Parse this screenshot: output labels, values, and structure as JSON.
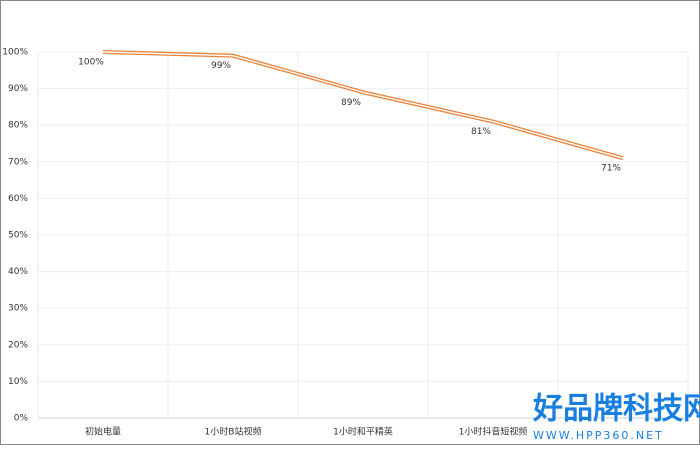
{
  "chart_data": {
    "type": "line",
    "categories": [
      "初始电量",
      "1小时B站视频",
      "1小时和平精英",
      "1小时抖音短视频",
      null
    ],
    "series": [
      {
        "name": null,
        "color": "#e8833a",
        "values": [
          100,
          99,
          89,
          81,
          71
        ],
        "value_labels": [
          "100%",
          "99%",
          "89%",
          "81%",
          "71%"
        ]
      }
    ],
    "ylim": [
      0,
      100
    ],
    "yticks": [
      {
        "value": 0,
        "label": "0%"
      },
      {
        "value": 10,
        "label": "10%"
      },
      {
        "value": 20,
        "label": "20%"
      },
      {
        "value": 30,
        "label": "30%"
      },
      {
        "value": 40,
        "label": "40%"
      },
      {
        "value": 50,
        "label": "50%"
      },
      {
        "value": 60,
        "label": "60%"
      },
      {
        "value": 70,
        "label": "70%"
      },
      {
        "value": 80,
        "label": "80%"
      },
      {
        "value": 90,
        "label": "90%"
      },
      {
        "value": 100,
        "label": "100%"
      }
    ],
    "grid": true,
    "watermark": {
      "title": "好品牌科技网",
      "url": "WWW.HPP360.NET"
    }
  }
}
